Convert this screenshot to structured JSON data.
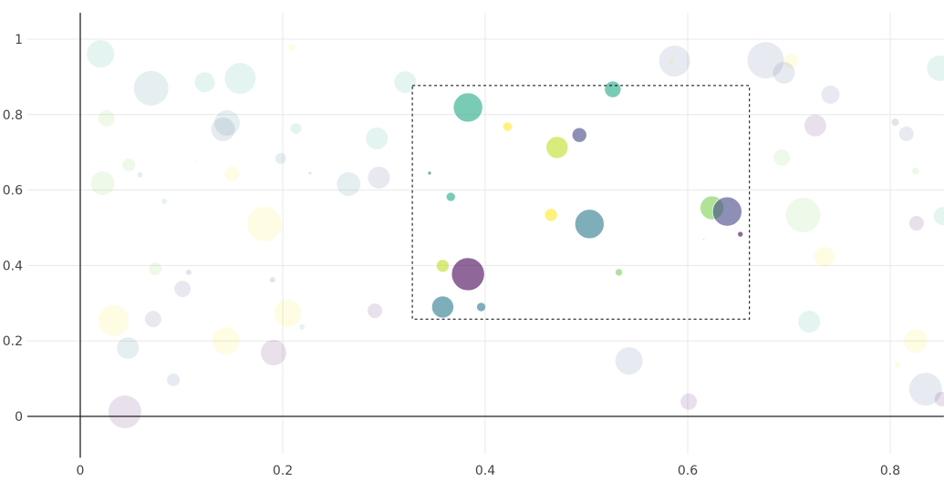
{
  "chart_data": {
    "type": "scatter",
    "title": "",
    "xlabel": "",
    "ylabel": "",
    "xlim": [
      -0.02,
      0.853
    ],
    "ylim": [
      -0.1,
      1.07
    ],
    "grid": true,
    "x_ticks": [
      "0",
      "0.2",
      "0.4",
      "0.6",
      "0.8"
    ],
    "x_tick_values": [
      0,
      0.2,
      0.4,
      0.6,
      0.8
    ],
    "y_ticks": [
      "0",
      "0.2",
      "0.4",
      "0.6",
      "0.8",
      "1"
    ],
    "y_tick_values": [
      0,
      0.2,
      0.4,
      0.6,
      0.8,
      1
    ],
    "selection_box": {
      "x": [
        0.328,
        0.661
      ],
      "y": [
        0.258,
        0.877
      ]
    },
    "selected_opacity": 0.6,
    "unselected_opacity": 0.12,
    "colors": {
      "purple": "#440154",
      "indigo": "#414487",
      "blue": "#3b528b",
      "bluegreen": "#2a788e",
      "teal": "#22a884",
      "green": "#7ad151",
      "lime": "#bddf26",
      "yellow": "#fde725"
    },
    "points": [
      {
        "x": 0.383,
        "y": 0.819,
        "size": 16,
        "color": "teal",
        "selected": true
      },
      {
        "x": 0.422,
        "y": 0.768,
        "size": 5,
        "color": "yellow",
        "selected": true
      },
      {
        "x": 0.471,
        "y": 0.713,
        "size": 12,
        "color": "lime",
        "selected": true
      },
      {
        "x": 0.493,
        "y": 0.746,
        "size": 8,
        "color": "indigo",
        "selected": true
      },
      {
        "x": 0.526,
        "y": 0.867,
        "size": 9,
        "color": "teal",
        "selected": true
      },
      {
        "x": 0.345,
        "y": 0.645,
        "size": 2,
        "color": "bluegreen",
        "selected": true
      },
      {
        "x": 0.366,
        "y": 0.582,
        "size": 5,
        "color": "teal",
        "selected": true
      },
      {
        "x": 0.465,
        "y": 0.534,
        "size": 7,
        "color": "yellow",
        "selected": true
      },
      {
        "x": 0.503,
        "y": 0.51,
        "size": 16,
        "color": "bluegreen",
        "selected": true
      },
      {
        "x": 0.624,
        "y": 0.553,
        "size": 13,
        "color": "green",
        "selected": true
      },
      {
        "x": 0.639,
        "y": 0.543,
        "size": 16,
        "color": "indigo",
        "selected": true
      },
      {
        "x": 0.652,
        "y": 0.483,
        "size": 3,
        "color": "purple",
        "selected": true
      },
      {
        "x": 0.616,
        "y": 0.47,
        "size": 0.8,
        "color": "teal",
        "selected": true
      },
      {
        "x": 0.358,
        "y": 0.399,
        "size": 7,
        "color": "lime",
        "selected": true
      },
      {
        "x": 0.383,
        "y": 0.377,
        "size": 18,
        "color": "purple",
        "selected": true
      },
      {
        "x": 0.532,
        "y": 0.382,
        "size": 4,
        "color": "green",
        "selected": true
      },
      {
        "x": 0.358,
        "y": 0.29,
        "size": 12,
        "color": "bluegreen",
        "selected": true
      },
      {
        "x": 0.396,
        "y": 0.29,
        "size": 5,
        "color": "bluegreen",
        "selected": true
      },
      {
        "x": 0.02,
        "y": 0.961,
        "size": 15,
        "color": "teal",
        "selected": false
      },
      {
        "x": 0.07,
        "y": 0.87,
        "size": 19,
        "color": "bluegreen",
        "selected": false
      },
      {
        "x": 0.123,
        "y": 0.886,
        "size": 11,
        "color": "teal",
        "selected": false
      },
      {
        "x": 0.158,
        "y": 0.896,
        "size": 17,
        "color": "teal",
        "selected": false
      },
      {
        "x": 0.209,
        "y": 0.978,
        "size": 4,
        "color": "yellow",
        "selected": false
      },
      {
        "x": 0.026,
        "y": 0.79,
        "size": 9,
        "color": "green",
        "selected": false
      },
      {
        "x": 0.145,
        "y": 0.778,
        "size": 14,
        "color": "bluegreen",
        "selected": false
      },
      {
        "x": 0.141,
        "y": 0.761,
        "size": 13,
        "color": "blue",
        "selected": false
      },
      {
        "x": 0.213,
        "y": 0.763,
        "size": 6,
        "color": "teal",
        "selected": false
      },
      {
        "x": 0.293,
        "y": 0.737,
        "size": 12,
        "color": "teal",
        "selected": false
      },
      {
        "x": 0.321,
        "y": 0.886,
        "size": 12,
        "color": "teal",
        "selected": false
      },
      {
        "x": 0.048,
        "y": 0.667,
        "size": 7,
        "color": "green",
        "selected": false
      },
      {
        "x": 0.059,
        "y": 0.64,
        "size": 3,
        "color": "bluegreen",
        "selected": false
      },
      {
        "x": 0.022,
        "y": 0.618,
        "size": 13,
        "color": "green",
        "selected": false
      },
      {
        "x": 0.114,
        "y": 0.676,
        "size": 1,
        "color": "lime",
        "selected": false
      },
      {
        "x": 0.15,
        "y": 0.643,
        "size": 8,
        "color": "yellow",
        "selected": false
      },
      {
        "x": 0.198,
        "y": 0.684,
        "size": 6,
        "color": "bluegreen",
        "selected": false
      },
      {
        "x": 0.227,
        "y": 0.645,
        "size": 1.5,
        "color": "purple",
        "selected": false
      },
      {
        "x": 0.265,
        "y": 0.616,
        "size": 13,
        "color": "bluegreen",
        "selected": false
      },
      {
        "x": 0.295,
        "y": 0.633,
        "size": 12,
        "color": "indigo",
        "selected": false
      },
      {
        "x": 0.083,
        "y": 0.57,
        "size": 3,
        "color": "teal",
        "selected": false
      },
      {
        "x": 0.182,
        "y": 0.51,
        "size": 19,
        "color": "yellow",
        "selected": false
      },
      {
        "x": 0.074,
        "y": 0.391,
        "size": 7,
        "color": "green",
        "selected": false
      },
      {
        "x": 0.107,
        "y": 0.382,
        "size": 3,
        "color": "purple",
        "selected": false
      },
      {
        "x": 0.101,
        "y": 0.338,
        "size": 9,
        "color": "indigo",
        "selected": false
      },
      {
        "x": 0.19,
        "y": 0.362,
        "size": 3,
        "color": "purple",
        "selected": false
      },
      {
        "x": 0.033,
        "y": 0.254,
        "size": 17,
        "color": "yellow",
        "selected": false
      },
      {
        "x": 0.072,
        "y": 0.258,
        "size": 9,
        "color": "indigo",
        "selected": false
      },
      {
        "x": 0.047,
        "y": 0.181,
        "size": 12,
        "color": "bluegreen",
        "selected": false
      },
      {
        "x": 0.092,
        "y": 0.097,
        "size": 7,
        "color": "blue",
        "selected": false
      },
      {
        "x": 0.144,
        "y": 0.2,
        "size": 15,
        "color": "yellow",
        "selected": false
      },
      {
        "x": 0.191,
        "y": 0.169,
        "size": 14,
        "color": "purple",
        "selected": false
      },
      {
        "x": 0.205,
        "y": 0.273,
        "size": 15,
        "color": "yellow",
        "selected": false
      },
      {
        "x": 0.219,
        "y": 0.237,
        "size": 3,
        "color": "teal",
        "selected": false
      },
      {
        "x": 0.044,
        "y": 0.012,
        "size": 18,
        "color": "purple",
        "selected": false
      },
      {
        "x": 0.291,
        "y": 0.28,
        "size": 8,
        "color": "purple",
        "selected": false
      },
      {
        "x": 0.542,
        "y": 0.147,
        "size": 15,
        "color": "blue",
        "selected": false
      },
      {
        "x": 0.601,
        "y": 0.039,
        "size": 9,
        "color": "purple",
        "selected": false
      },
      {
        "x": 0.587,
        "y": 0.942,
        "size": 17,
        "color": "blue",
        "selected": false
      },
      {
        "x": 0.584,
        "y": 0.94,
        "size": 3,
        "color": "yellow",
        "selected": false
      },
      {
        "x": 0.677,
        "y": 0.944,
        "size": 20,
        "color": "blue",
        "selected": false
      },
      {
        "x": 0.702,
        "y": 0.942,
        "size": 8,
        "color": "yellow",
        "selected": false
      },
      {
        "x": 0.695,
        "y": 0.911,
        "size": 12,
        "color": "blue",
        "selected": false
      },
      {
        "x": 0.741,
        "y": 0.853,
        "size": 10,
        "color": "blue",
        "selected": false
      },
      {
        "x": 0.726,
        "y": 0.771,
        "size": 12,
        "color": "purple",
        "selected": false
      },
      {
        "x": 0.693,
        "y": 0.686,
        "size": 9,
        "color": "green",
        "selected": false
      },
      {
        "x": 0.714,
        "y": 0.534,
        "size": 19,
        "color": "green",
        "selected": false
      },
      {
        "x": 0.735,
        "y": 0.423,
        "size": 11,
        "color": "yellow",
        "selected": false
      },
      {
        "x": 0.72,
        "y": 0.251,
        "size": 12,
        "color": "teal",
        "selected": false
      },
      {
        "x": 0.805,
        "y": 0.78,
        "size": 4,
        "color": "purple",
        "selected": false
      },
      {
        "x": 0.816,
        "y": 0.749,
        "size": 8,
        "color": "blue",
        "selected": false
      },
      {
        "x": 0.825,
        "y": 0.65,
        "size": 4,
        "color": "green",
        "selected": false
      },
      {
        "x": 0.826,
        "y": 0.512,
        "size": 8,
        "color": "purple",
        "selected": false
      },
      {
        "x": 0.825,
        "y": 0.2,
        "size": 13,
        "color": "yellow",
        "selected": false
      },
      {
        "x": 0.807,
        "y": 0.135,
        "size": 3,
        "color": "yellow",
        "selected": false
      },
      {
        "x": 0.835,
        "y": 0.072,
        "size": 18,
        "color": "blue",
        "selected": false
      },
      {
        "x": 0.851,
        "y": 0.046,
        "size": 8,
        "color": "purple",
        "selected": false
      },
      {
        "x": 0.849,
        "y": 0.923,
        "size": 14,
        "color": "teal",
        "selected": false
      },
      {
        "x": 0.852,
        "y": 0.531,
        "size": 10,
        "color": "teal",
        "selected": false
      }
    ]
  }
}
